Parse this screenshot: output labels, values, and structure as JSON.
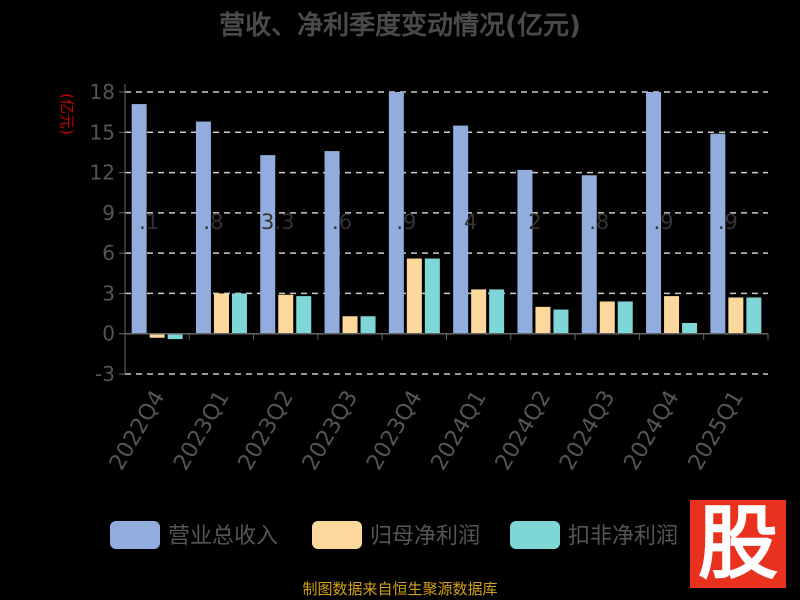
{
  "chart_data": {
    "type": "bar",
    "title": "营收、净利季度变动情况(亿元)",
    "ylabel": "(亿元)",
    "ylim": [
      -3,
      18
    ],
    "yticks": [
      -3,
      0,
      3,
      6,
      9,
      12,
      15,
      18
    ],
    "grid": true,
    "legend_position": "bottom",
    "categories": [
      "2022Q4",
      "2023Q1",
      "2023Q2",
      "2023Q3",
      "2023Q4",
      "2024Q1",
      "2024Q2",
      "2024Q3",
      "2024Q4",
      "2025Q1"
    ],
    "series": [
      {
        "name": "营业总收入",
        "color": "#91acdd",
        "values": [
          17.1,
          15.8,
          13.3,
          13.6,
          18.0,
          15.5,
          12.2,
          11.8,
          18.0,
          14.9
        ]
      },
      {
        "name": "归母净利润",
        "color": "#fdd89d",
        "values": [
          -0.3,
          3.0,
          2.9,
          1.3,
          5.6,
          3.3,
          2.0,
          2.4,
          2.8,
          2.7
        ]
      },
      {
        "name": "扣非净利润",
        "color": "#7ed6d6",
        "values": [
          -0.4,
          3.0,
          2.8,
          1.3,
          5.6,
          3.3,
          1.8,
          2.4,
          0.8,
          2.7
        ]
      }
    ],
    "data_labels": [
      ".1",
      ".8",
      "3.3",
      ".6",
      ".9",
      "4",
      "2",
      ".8",
      ".9",
      ".9"
    ]
  },
  "source": "制图数据来自恒生聚源数据库",
  "logo_text": "股"
}
